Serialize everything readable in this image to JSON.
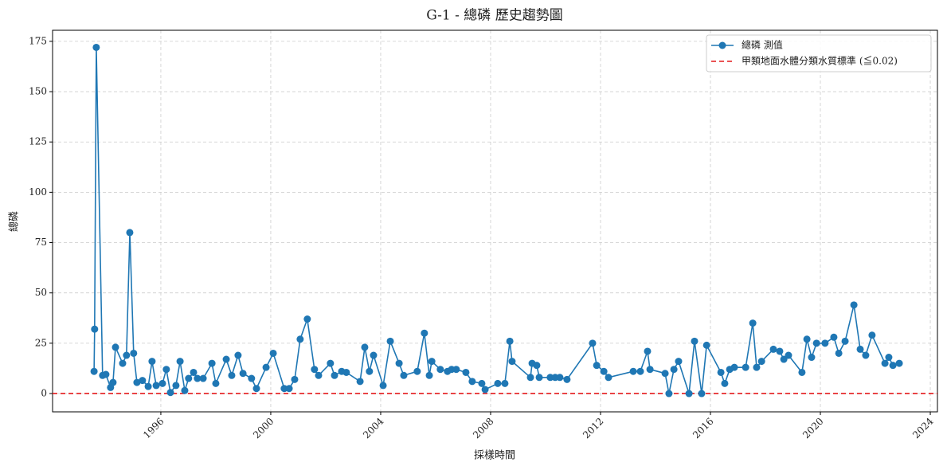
{
  "chart_data": {
    "type": "line",
    "title": "G-1 - 總磷 歷史趨勢圖",
    "xlabel": "採樣時間",
    "ylabel": "總磷",
    "xlim": [
      1992.06,
      2024.26
    ],
    "xticks": [
      1996,
      2000,
      2004,
      2008,
      2012,
      2016,
      2020,
      2024
    ],
    "ylim": [
      -9.1,
      180.5
    ],
    "yticks": [
      0,
      25,
      50,
      75,
      100,
      125,
      150,
      175
    ],
    "grid": true,
    "legend": "upper right",
    "series": [
      {
        "name": "總磷 測值",
        "color": "#1f77b4",
        "x": [
          1993.57,
          1993.59,
          1993.65,
          1993.88,
          1994.0,
          1994.17,
          1994.26,
          1994.35,
          1994.61,
          1994.75,
          1994.87,
          1995.01,
          1995.13,
          1995.33,
          1995.54,
          1995.68,
          1995.83,
          1996.06,
          1996.2,
          1996.35,
          1996.55,
          1996.7,
          1996.87,
          1997.01,
          1997.19,
          1997.33,
          1997.54,
          1997.86,
          1998.0,
          1998.38,
          1998.58,
          1998.81,
          1998.99,
          1999.3,
          1999.48,
          1999.83,
          2000.09,
          2000.49,
          2000.67,
          2000.87,
          2001.07,
          2001.33,
          2001.59,
          2001.74,
          2002.17,
          2002.32,
          2002.58,
          2002.75,
          2003.25,
          2003.42,
          2003.59,
          2003.74,
          2004.09,
          2004.35,
          2004.67,
          2004.84,
          2005.33,
          2005.59,
          2005.77,
          2005.86,
          2006.17,
          2006.43,
          2006.58,
          2006.75,
          2007.1,
          2007.33,
          2007.68,
          2007.8,
          2008.26,
          2008.52,
          2008.7,
          2008.78,
          2009.45,
          2009.51,
          2009.68,
          2009.77,
          2010.17,
          2010.35,
          2010.52,
          2010.78,
          2011.71,
          2011.86,
          2012.12,
          2012.29,
          2013.19,
          2013.45,
          2013.71,
          2013.8,
          2014.35,
          2014.49,
          2014.67,
          2014.84,
          2015.22,
          2015.42,
          2015.68,
          2015.86,
          2016.38,
          2016.52,
          2016.7,
          2016.87,
          2017.28,
          2017.54,
          2017.68,
          2017.86,
          2018.29,
          2018.52,
          2018.67,
          2018.84,
          2019.33,
          2019.51,
          2019.68,
          2019.86,
          2020.17,
          2020.49,
          2020.67,
          2020.9,
          2021.22,
          2021.45,
          2021.65,
          2021.88,
          2022.35,
          2022.49,
          2022.64,
          2022.87
        ],
        "values": [
          11,
          32,
          172,
          9,
          9.5,
          3,
          5.5,
          23,
          15,
          19,
          80,
          20,
          5.5,
          6.5,
          3.5,
          16,
          4,
          5,
          12,
          0.5,
          4,
          16,
          1.5,
          7.5,
          10.5,
          7.5,
          7.5,
          15,
          5,
          17,
          9,
          19,
          10,
          7.5,
          2.5,
          13,
          20,
          2.5,
          2.5,
          7,
          27,
          37,
          12,
          9,
          15,
          9,
          11,
          10.5,
          6,
          23,
          11,
          19,
          4,
          26,
          15,
          9,
          11,
          30,
          9,
          16,
          12,
          11,
          12,
          12,
          10.5,
          6,
          5,
          2,
          5,
          5,
          26,
          16,
          8,
          15,
          14,
          8,
          8,
          8,
          8,
          7,
          25,
          14,
          11,
          8,
          11,
          11,
          21,
          12,
          10,
          0,
          12,
          16,
          0,
          26,
          0,
          24,
          10.5,
          5,
          12,
          13,
          13,
          35,
          13,
          16,
          22,
          21,
          17,
          19,
          10.5,
          27,
          18,
          25,
          25,
          28,
          20,
          26,
          44,
          22,
          19,
          29,
          15,
          18,
          14,
          15
        ]
      }
    ],
    "reference_line": {
      "name": "甲類地面水體分類水質標準 (≦0.02)",
      "value": 0.02,
      "color": "#e41a1c"
    }
  }
}
